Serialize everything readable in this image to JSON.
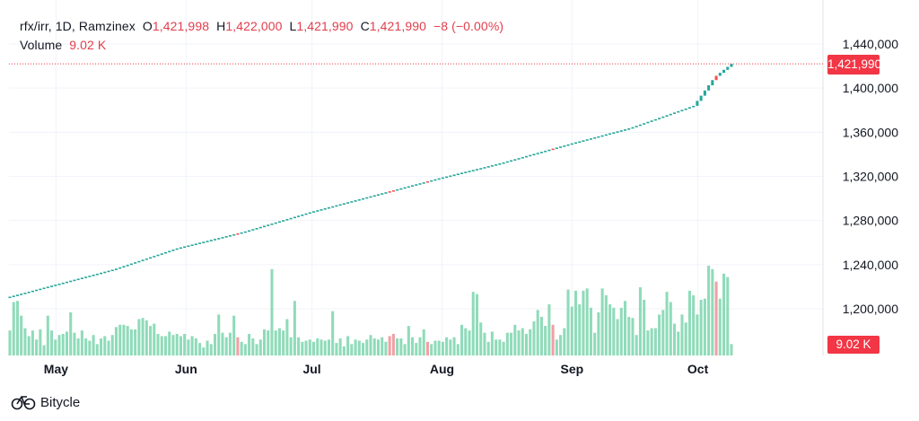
{
  "legend": {
    "symbol": "rfx/irr, 1D, Ramzinex",
    "open_label": "O",
    "open": "1,421,998",
    "high_label": "H",
    "high": "1,422,000",
    "low_label": "L",
    "low": "1,421,990",
    "close_label": "C",
    "close": "1,421,990",
    "change": "−8 (−0.00%)",
    "volume_label": "Volume",
    "volume": "9.02 K"
  },
  "price_tag": "1,421,990",
  "volume_tag": "9.02 K",
  "brand": {
    "name": "Bitycle"
  },
  "colors": {
    "up": "#26a69a",
    "down": "#ef5350",
    "vol_up": "#8fdbb9",
    "vol_down": "#f0a0a4",
    "tag": "#f23645"
  },
  "chart_data": {
    "type": "candlestick",
    "x_tick_labels": [
      "May",
      "Jun",
      "Jul",
      "Aug",
      "Sep",
      "Oct"
    ],
    "y_tick_labels": [
      "1,200,000",
      "1,240,000",
      "1,280,000",
      "1,320,000",
      "1,360,000",
      "1,400,000",
      "1,440,000"
    ],
    "y_ticks": [
      1200000,
      1240000,
      1280000,
      1320000,
      1360000,
      1400000,
      1440000
    ],
    "ylim": [
      1168000,
      1461000
    ],
    "last_price": 1421990,
    "last_volume": 9.02,
    "date_range": [
      "2024-04-20",
      "2024-10-09"
    ],
    "price_points": [
      [
        "2024-04-20",
        1211000
      ],
      [
        "2024-05-01",
        1222000
      ],
      [
        "2024-05-15",
        1236000
      ],
      [
        "2024-05-30",
        1255000
      ],
      [
        "2024-06-15",
        1270000
      ],
      [
        "2024-07-01",
        1288000
      ],
      [
        "2024-07-15",
        1302000
      ],
      [
        "2024-07-31",
        1318000
      ],
      [
        "2024-08-15",
        1332000
      ],
      [
        "2024-09-01",
        1350000
      ],
      [
        "2024-09-15",
        1364000
      ],
      [
        "2024-09-30",
        1384000
      ],
      [
        "2024-10-05",
        1410000
      ],
      [
        "2024-10-09",
        1421990
      ]
    ],
    "volumes": [
      22,
      47,
      48,
      35,
      24,
      17,
      22,
      14,
      23,
      9,
      35,
      22,
      14,
      18,
      19,
      21,
      38,
      20,
      15,
      22,
      15,
      13,
      18,
      10,
      15,
      17,
      13,
      18,
      25,
      27,
      27,
      26,
      23,
      23,
      32,
      33,
      31,
      26,
      28,
      19,
      17,
      17,
      21,
      18,
      19,
      17,
      19,
      14,
      17,
      15,
      11,
      7,
      13,
      10,
      19,
      36,
      20,
      16,
      20,
      35,
      16,
      12,
      10,
      19,
      15,
      10,
      14,
      23,
      22,
      76,
      22,
      24,
      22,
      32,
      16,
      48,
      16,
      12,
      13,
      14,
      12,
      15,
      14,
      13,
      14,
      39,
      11,
      15,
      8,
      17,
      10,
      14,
      13,
      11,
      14,
      18,
      15,
      14,
      16,
      12,
      17,
      19,
      15,
      15,
      10,
      26,
      16,
      11,
      16,
      23,
      12,
      10,
      13,
      13,
      12,
      16,
      14,
      16,
      10,
      27,
      24,
      22,
      56,
      54,
      29,
      20,
      12,
      21,
      14,
      14,
      12,
      20,
      20,
      27,
      22,
      24,
      19,
      23,
      30,
      40,
      34,
      26,
      45,
      27,
      14,
      18,
      24,
      58,
      43,
      57,
      45,
      57,
      59,
      42,
      20,
      38,
      59,
      53,
      45,
      42,
      32,
      42,
      48,
      34,
      33,
      18,
      60,
      49,
      22,
      24,
      24,
      36,
      40,
      56,
      47,
      28,
      21,
      36,
      29,
      57,
      53,
      36,
      49,
      50,
      79,
      76,
      65,
      50,
      72,
      69,
      10
    ],
    "down_indices": [
      60,
      100,
      101,
      110,
      143,
      186,
      195,
      198
    ]
  }
}
